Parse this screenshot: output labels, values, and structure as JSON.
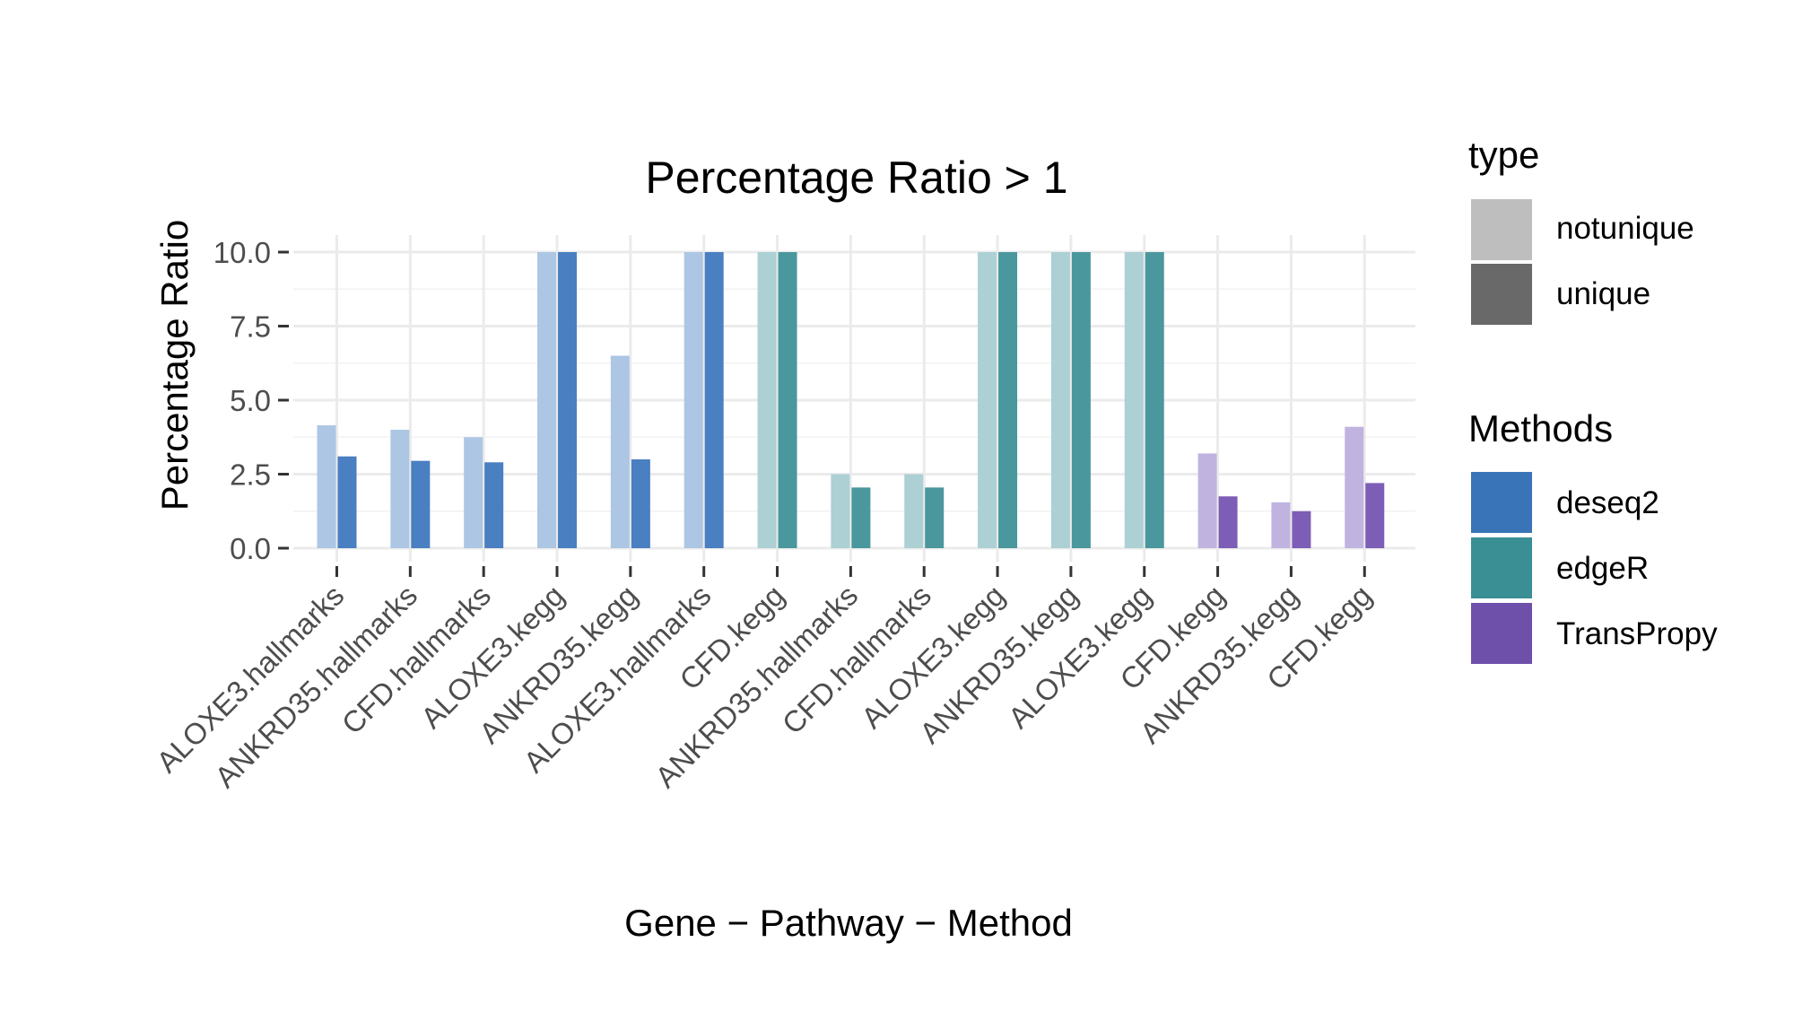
{
  "chart_data": {
    "type": "bar",
    "title": "Percentage Ratio > 1",
    "xlabel": "Gene − Pathway − Method",
    "ylabel": "Percentage Ratio",
    "ylim": [
      0,
      10
    ],
    "y_ticks": [
      "0.0",
      "2.5",
      "5.0",
      "7.5",
      "10.0"
    ],
    "grid": true,
    "legend_position": "right",
    "categories": [
      "ALOXE3.hallmarks",
      "ANKRD35.hallmarks",
      "CFD.hallmarks",
      "ALOXE3.kegg",
      "ANKRD35.kegg",
      "ALOXE3.hallmarks",
      "CFD.kegg",
      "ANKRD35.hallmarks",
      "CFD.hallmarks",
      "ALOXE3.kegg",
      "ANKRD35.kegg",
      "ALOXE3.kegg",
      "CFD.kegg",
      "ANKRD35.kegg",
      "CFD.kegg"
    ],
    "methods": [
      "deseq2",
      "deseq2",
      "deseq2",
      "deseq2",
      "deseq2",
      "deseq2",
      "edgeR",
      "edgeR",
      "edgeR",
      "edgeR",
      "edgeR",
      "edgeR",
      "TransPropy",
      "TransPropy",
      "TransPropy"
    ],
    "series": [
      {
        "name": "notunique",
        "values": [
          4.15,
          4.0,
          3.75,
          10.0,
          6.5,
          10.0,
          10.0,
          2.5,
          2.5,
          10.0,
          10.0,
          10.0,
          3.2,
          1.55,
          4.1
        ]
      },
      {
        "name": "unique",
        "values": [
          3.1,
          2.95,
          2.9,
          10.0,
          3.0,
          10.0,
          10.0,
          2.05,
          2.05,
          10.0,
          10.0,
          10.0,
          1.75,
          1.25,
          2.2
        ]
      }
    ],
    "legend_type": {
      "title": "type",
      "items": [
        {
          "label": "notunique",
          "color": "#bebebe"
        },
        {
          "label": "unique",
          "color": "#696969"
        }
      ]
    },
    "legend_methods": {
      "title": "Methods",
      "items": [
        {
          "label": "deseq2",
          "color": "#3a74b8"
        },
        {
          "label": "edgeR",
          "color": "#3a8f95"
        },
        {
          "label": "TransPropy",
          "color": "#6e50aa"
        }
      ]
    },
    "colors": {
      "deseq2": {
        "notunique": "#adc6e4",
        "unique": "#4a7fc1"
      },
      "edgeR": {
        "notunique": "#acd0d4",
        "unique": "#4b979e"
      },
      "TransPropy": {
        "notunique": "#c1b3df",
        "unique": "#7d5eb6"
      }
    }
  }
}
